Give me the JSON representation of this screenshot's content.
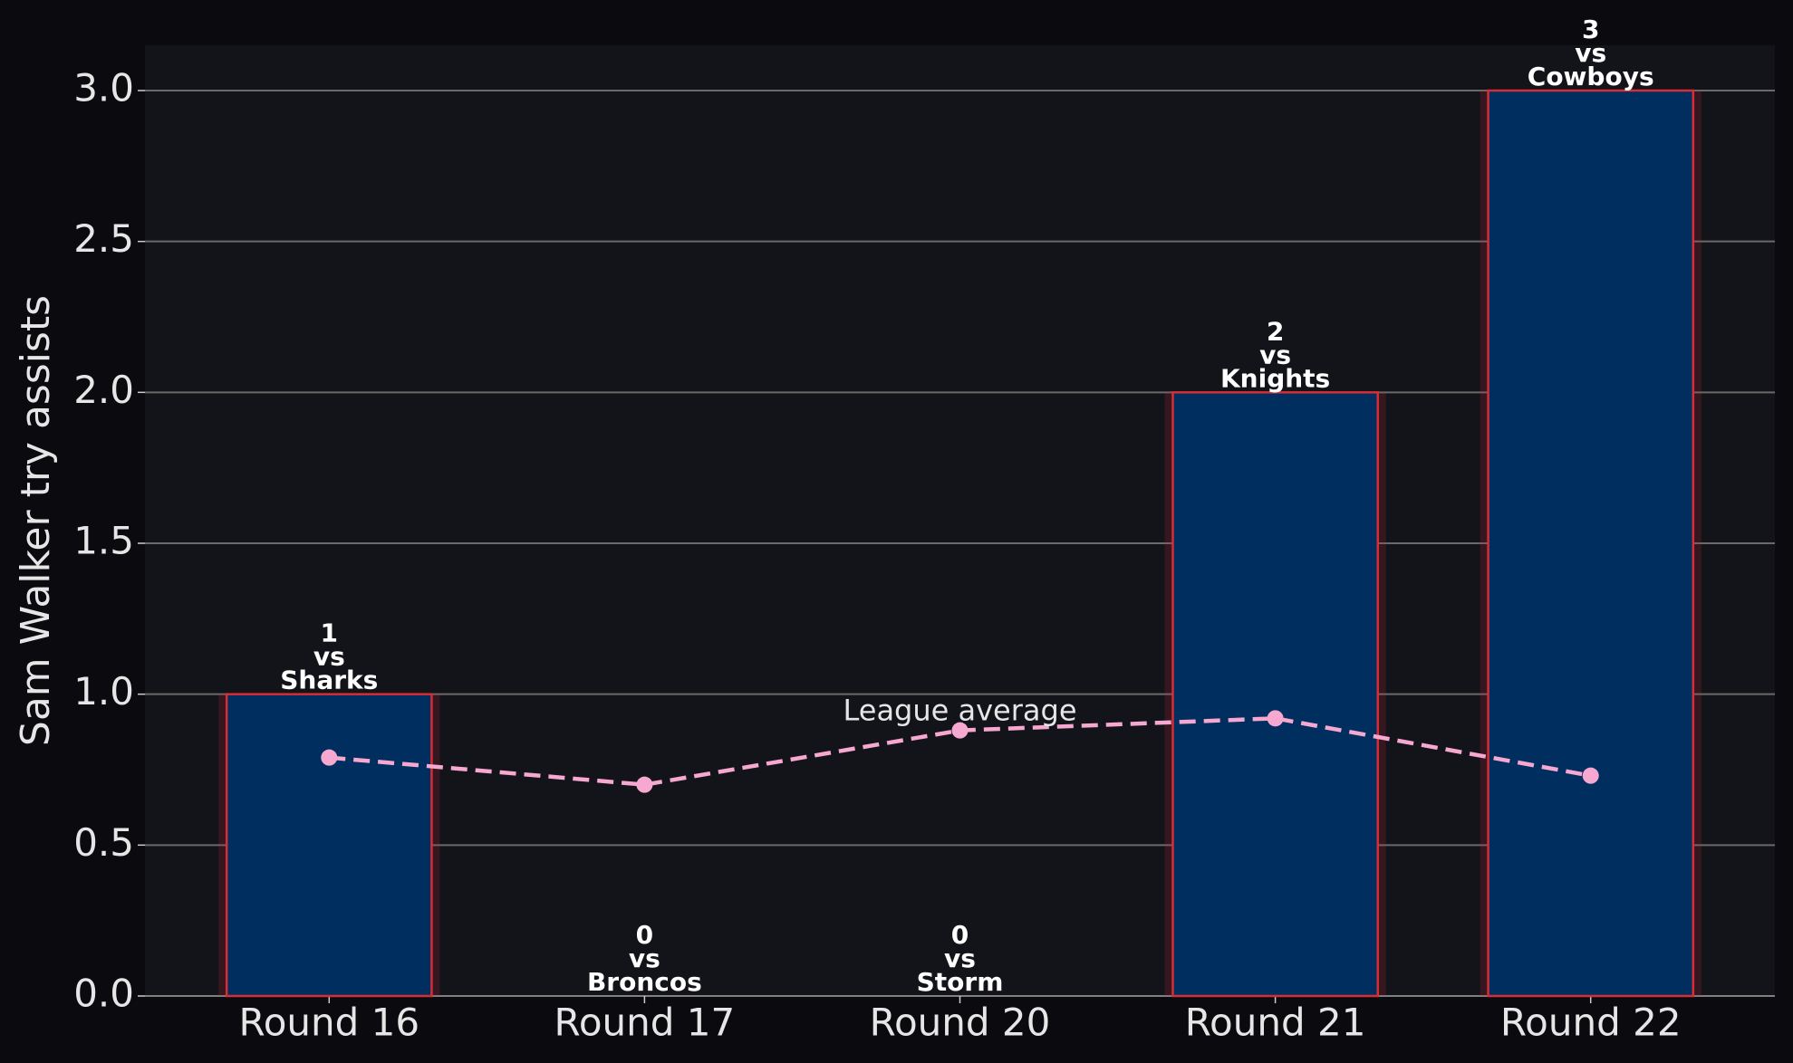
{
  "chart_data": {
    "type": "bar",
    "ylabel": "Sam Walker try assists",
    "categories": [
      "Round 16",
      "Round 17",
      "Round 20",
      "Round 21",
      "Round 22"
    ],
    "values": [
      1,
      0,
      0,
      2,
      3
    ],
    "versus": "vs",
    "opponents": [
      "Sharks",
      "Broncos",
      "Storm",
      "Knights",
      "Cowboys"
    ],
    "color": "#002f5f",
    "edge_color": "#d62d36",
    "ylim": [
      0,
      3.15
    ],
    "yticks": [
      {
        "value": 0,
        "label": "0.0"
      },
      {
        "value": 0.5,
        "label": "0.5"
      },
      {
        "value": 1,
        "label": "1.0"
      },
      {
        "value": 1.5,
        "label": "1.5"
      },
      {
        "value": 2,
        "label": "2.0"
      },
      {
        "value": 2.5,
        "label": "2.5"
      },
      {
        "value": 3,
        "label": "3.0"
      }
    ],
    "grid": true,
    "line": {
      "name": "League average",
      "color": "#f7a8d0",
      "values": [
        0.79,
        0.7,
        0.88,
        0.92,
        0.73
      ]
    }
  }
}
